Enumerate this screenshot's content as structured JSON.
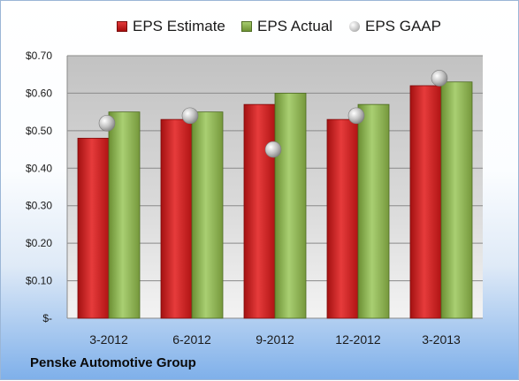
{
  "footer": {
    "company": "Penske Automotive Group"
  },
  "legend": {
    "estimate": "EPS Estimate",
    "actual": "EPS Actual",
    "gaap": "EPS GAAP"
  },
  "chart_data": {
    "type": "bar",
    "title": "",
    "xlabel": "",
    "ylabel": "",
    "categories": [
      "3-2012",
      "6-2012",
      "9-2012",
      "12-2012",
      "3-2013"
    ],
    "series": [
      {
        "name": "EPS Estimate",
        "kind": "bar",
        "color": "#c81f1f",
        "values": [
          0.48,
          0.53,
          0.57,
          0.53,
          0.62
        ]
      },
      {
        "name": "EPS Actual",
        "kind": "bar",
        "color": "#8cb04e",
        "values": [
          0.55,
          0.55,
          0.6,
          0.57,
          0.63
        ]
      },
      {
        "name": "EPS GAAP",
        "kind": "marker",
        "color": "#b0b0b0",
        "values": [
          0.52,
          0.54,
          0.45,
          0.54,
          0.64
        ]
      }
    ],
    "ylim": [
      0,
      0.7
    ],
    "y_ticks": [
      0,
      0.1,
      0.2,
      0.3,
      0.4,
      0.5,
      0.6,
      0.7
    ],
    "y_tick_labels": [
      "$-",
      "$0.10",
      "$0.20",
      "$0.30",
      "$0.40",
      "$0.50",
      "$0.60",
      "$0.70"
    ],
    "grid": true,
    "legend_position": "top"
  }
}
